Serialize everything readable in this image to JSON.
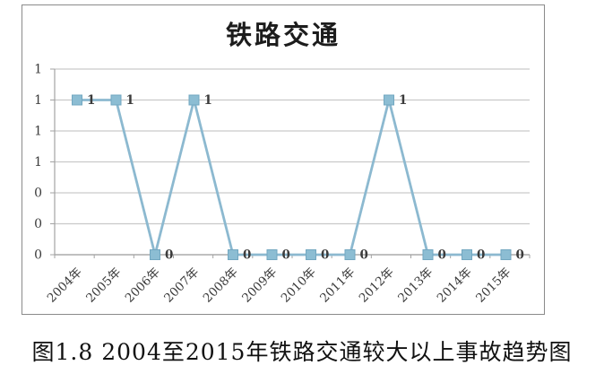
{
  "caption": "图1.8 2004至2015年铁路交通较大以上事故趋势图",
  "colors": {
    "gridline": "#c9c9c9",
    "axis": "#a3a3a3",
    "frame_border": "#8a8a8a",
    "text": "#3b3b3b",
    "background": "#ffffff"
  },
  "chart_data": {
    "type": "line",
    "title": "铁路交通",
    "categories": [
      "2004年",
      "2005年",
      "2006年",
      "2007年",
      "2008年",
      "2009年",
      "2010年",
      "2011年",
      "2012年",
      "2013年",
      "2014年",
      "2015年"
    ],
    "series": [
      {
        "name": "铁路交通",
        "values": [
          1,
          1,
          0,
          1,
          0,
          0,
          0,
          0,
          1,
          0,
          0,
          0
        ]
      }
    ],
    "data_labels": [
      "1",
      "1",
      "0",
      "1",
      "0",
      "0",
      "0",
      "0",
      "1",
      "0",
      "0",
      "0"
    ],
    "xlabel": "",
    "ylabel": "",
    "ylim": [
      0,
      1.2
    ],
    "y_tick_values": [
      0,
      0.2,
      0.4,
      0.6,
      0.8,
      1.0,
      1.2
    ],
    "y_tick_labels_bottom_to_top": [
      "0",
      "0",
      "0",
      "1",
      "1",
      "1",
      "1"
    ],
    "grid": true,
    "legend": "none",
    "marker": "square",
    "line_color": "#8cb9d0",
    "marker_fill": "#8cbdd3",
    "marker_edge": "#72a7c0"
  }
}
